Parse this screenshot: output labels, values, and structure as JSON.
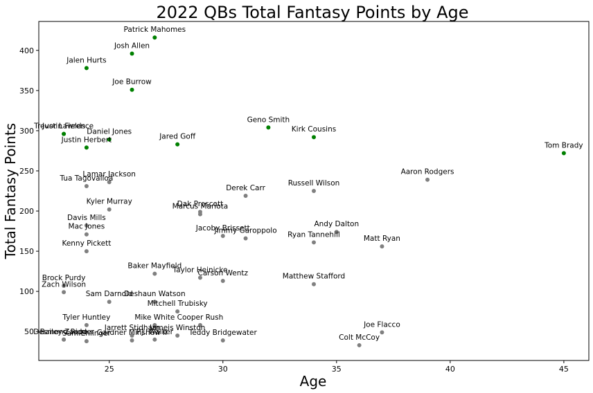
{
  "chart_data": {
    "type": "scatter",
    "title": "2022 QBs Total Fantasy Points by Age",
    "xlabel": "Age",
    "ylabel": "Total Fantasy Points",
    "xlim": [
      21.9,
      46.1
    ],
    "ylim": [
      14,
      436
    ],
    "xticks": [
      25,
      30,
      35,
      40,
      45
    ],
    "yticks": [
      50,
      100,
      150,
      200,
      250,
      300,
      350,
      400
    ],
    "grid": false,
    "colors": {
      "highlight": "#008000",
      "other": "#808080"
    },
    "series": [
      {
        "color_key": "highlight",
        "points": [
          {
            "label": "Patrick Mahomes",
            "x": 27,
            "y": 416
          },
          {
            "label": "Josh Allen",
            "x": 26,
            "y": 396
          },
          {
            "label": "Jalen Hurts",
            "x": 24,
            "y": 378
          },
          {
            "label": "Joe Burrow",
            "x": 26,
            "y": 351
          },
          {
            "label": "Geno Smith",
            "x": 32,
            "y": 304
          },
          {
            "label": "Kirk Cousins",
            "x": 34,
            "y": 292
          },
          {
            "label": "Trevor Lawrence",
            "x": 23,
            "y": 296
          },
          {
            "label": "Justin Fields",
            "x": 23,
            "y": 296
          },
          {
            "label": "Daniel Jones",
            "x": 25,
            "y": 289
          },
          {
            "label": "Justin Herbert",
            "x": 24,
            "y": 279
          },
          {
            "label": "Jared Goff",
            "x": 28,
            "y": 283
          },
          {
            "label": "Tom Brady",
            "x": 45,
            "y": 272
          }
        ]
      },
      {
        "color_key": "other",
        "points": [
          {
            "label": "Aaron Rodgers",
            "x": 39,
            "y": 239
          },
          {
            "label": "Lamar Jackson",
            "x": 25,
            "y": 236
          },
          {
            "label": "Tua Tagovailoa",
            "x": 24,
            "y": 231
          },
          {
            "label": "Russell Wilson",
            "x": 34,
            "y": 225
          },
          {
            "label": "Derek Carr",
            "x": 31,
            "y": 219
          },
          {
            "label": "Kyler Murray",
            "x": 25,
            "y": 202
          },
          {
            "label": "Dak Prescott",
            "x": 29,
            "y": 199
          },
          {
            "label": "Marcus Mariota",
            "x": 29,
            "y": 196
          },
          {
            "label": "Davis Mills",
            "x": 24,
            "y": 182
          },
          {
            "label": "Mac Jones",
            "x": 24,
            "y": 171
          },
          {
            "label": "Jacoby Brissett",
            "x": 30,
            "y": 169
          },
          {
            "label": "Jimmy Garoppolo",
            "x": 31,
            "y": 166
          },
          {
            "label": "Andy Dalton",
            "x": 35,
            "y": 174
          },
          {
            "label": "Ryan Tannehill",
            "x": 34,
            "y": 161
          },
          {
            "label": "Matt Ryan",
            "x": 37,
            "y": 156
          },
          {
            "label": "Kenny Pickett",
            "x": 24,
            "y": 150
          },
          {
            "label": "Baker Mayfield",
            "x": 27,
            "y": 122
          },
          {
            "label": "Taylor Heinicke",
            "x": 29,
            "y": 117
          },
          {
            "label": "Carson Wentz",
            "x": 30,
            "y": 113
          },
          {
            "label": "Matthew Stafford",
            "x": 34,
            "y": 109
          },
          {
            "label": "Brock Purdy",
            "x": 23,
            "y": 107
          },
          {
            "label": "Zach Wilson",
            "x": 23,
            "y": 99
          },
          {
            "label": "Sam Darnold",
            "x": 25,
            "y": 87
          },
          {
            "label": "Deshaun Watson",
            "x": 27,
            "y": 87
          },
          {
            "label": "Mitchell Trubisky",
            "x": 28,
            "y": 75
          },
          {
            "label": "Mike White",
            "x": 27,
            "y": 58
          },
          {
            "label": "Cooper Rush",
            "x": 29,
            "y": 58
          },
          {
            "label": "Tyler Huntley",
            "x": 24,
            "y": 58
          },
          {
            "label": "Jarrett Stidham",
            "x": 26,
            "y": 45
          },
          {
            "label": "Jameis Winston",
            "x": 28,
            "y": 45
          },
          {
            "label": "P.J. Walker",
            "x": 27,
            "y": 40
          },
          {
            "label": "Gardner Minshew II",
            "x": 26,
            "y": 39
          },
          {
            "label": "Teddy Bridgewater",
            "x": 30,
            "y": 39
          },
          {
            "label": "Joe Flacco",
            "x": 37,
            "y": 49
          },
          {
            "label": "Colt McCoy",
            "x": 36,
            "y": 33
          },
          {
            "label": "Desmond Ridder",
            "x": 23,
            "y": 40
          },
          {
            "label": "Bailey Zappe",
            "x": 23,
            "y": 40
          },
          {
            "label": "Sam Ehlinger",
            "x": 24,
            "y": 38
          }
        ]
      }
    ]
  }
}
